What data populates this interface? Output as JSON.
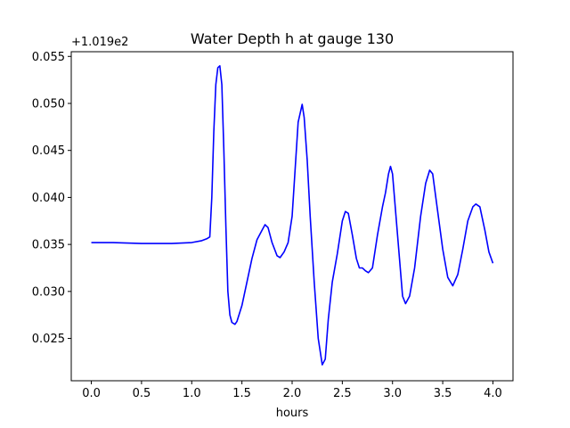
{
  "chart_data": {
    "type": "line",
    "title": "Water Depth h at gauge 130",
    "xlabel": "hours",
    "ylabel": "",
    "y_offset_label": "+1.019e2",
    "y_offset": 101.9,
    "xlim": [
      -0.2,
      4.2
    ],
    "ylim": [
      0.0205,
      0.0555
    ],
    "x_ticks": [
      0.0,
      0.5,
      1.0,
      1.5,
      2.0,
      2.5,
      3.0,
      3.5,
      4.0
    ],
    "x_tick_labels": [
      "0.0",
      "0.5",
      "1.0",
      "1.5",
      "2.0",
      "2.5",
      "3.0",
      "3.5",
      "4.0"
    ],
    "y_ticks": [
      0.025,
      0.03,
      0.035,
      0.04,
      0.045,
      0.05,
      0.055
    ],
    "y_tick_labels": [
      "0.025",
      "0.030",
      "0.035",
      "0.040",
      "0.045",
      "0.050",
      "0.055"
    ],
    "grid": false,
    "series": [
      {
        "color": "#0000ff",
        "x": [
          0.0,
          0.2,
          0.5,
          0.8,
          1.0,
          1.1,
          1.15,
          1.18,
          1.2,
          1.22,
          1.24,
          1.26,
          1.28,
          1.3,
          1.32,
          1.34,
          1.36,
          1.38,
          1.4,
          1.43,
          1.45,
          1.5,
          1.55,
          1.6,
          1.65,
          1.7,
          1.73,
          1.76,
          1.8,
          1.85,
          1.88,
          1.92,
          1.96,
          2.0,
          2.03,
          2.06,
          2.1,
          2.12,
          2.15,
          2.18,
          2.22,
          2.26,
          2.3,
          2.33,
          2.36,
          2.4,
          2.45,
          2.5,
          2.53,
          2.56,
          2.6,
          2.64,
          2.67,
          2.7,
          2.73,
          2.76,
          2.8,
          2.85,
          2.9,
          2.93,
          2.96,
          2.98,
          3.0,
          3.05,
          3.1,
          3.13,
          3.17,
          3.22,
          3.28,
          3.33,
          3.37,
          3.4,
          3.45,
          3.5,
          3.55,
          3.6,
          3.65,
          3.7,
          3.75,
          3.8,
          3.83,
          3.87,
          3.92,
          3.96,
          4.0
        ],
        "y": [
          0.0352,
          0.0352,
          0.0351,
          0.0351,
          0.0352,
          0.0354,
          0.0356,
          0.0358,
          0.04,
          0.047,
          0.052,
          0.0538,
          0.054,
          0.052,
          0.045,
          0.037,
          0.03,
          0.0275,
          0.0267,
          0.0265,
          0.0268,
          0.0285,
          0.031,
          0.0335,
          0.0355,
          0.0365,
          0.0371,
          0.0368,
          0.0352,
          0.0338,
          0.0336,
          0.0342,
          0.0352,
          0.038,
          0.043,
          0.048,
          0.0499,
          0.0485,
          0.044,
          0.038,
          0.031,
          0.025,
          0.0222,
          0.0228,
          0.027,
          0.031,
          0.034,
          0.0375,
          0.0385,
          0.0383,
          0.036,
          0.0335,
          0.0325,
          0.0325,
          0.0322,
          0.032,
          0.0325,
          0.036,
          0.039,
          0.0405,
          0.0425,
          0.0433,
          0.0425,
          0.036,
          0.0295,
          0.0287,
          0.0295,
          0.0325,
          0.038,
          0.0415,
          0.0429,
          0.0425,
          0.0385,
          0.0345,
          0.0315,
          0.0306,
          0.0318,
          0.0345,
          0.0375,
          0.039,
          0.0393,
          0.039,
          0.0365,
          0.0342,
          0.033
        ]
      }
    ]
  }
}
